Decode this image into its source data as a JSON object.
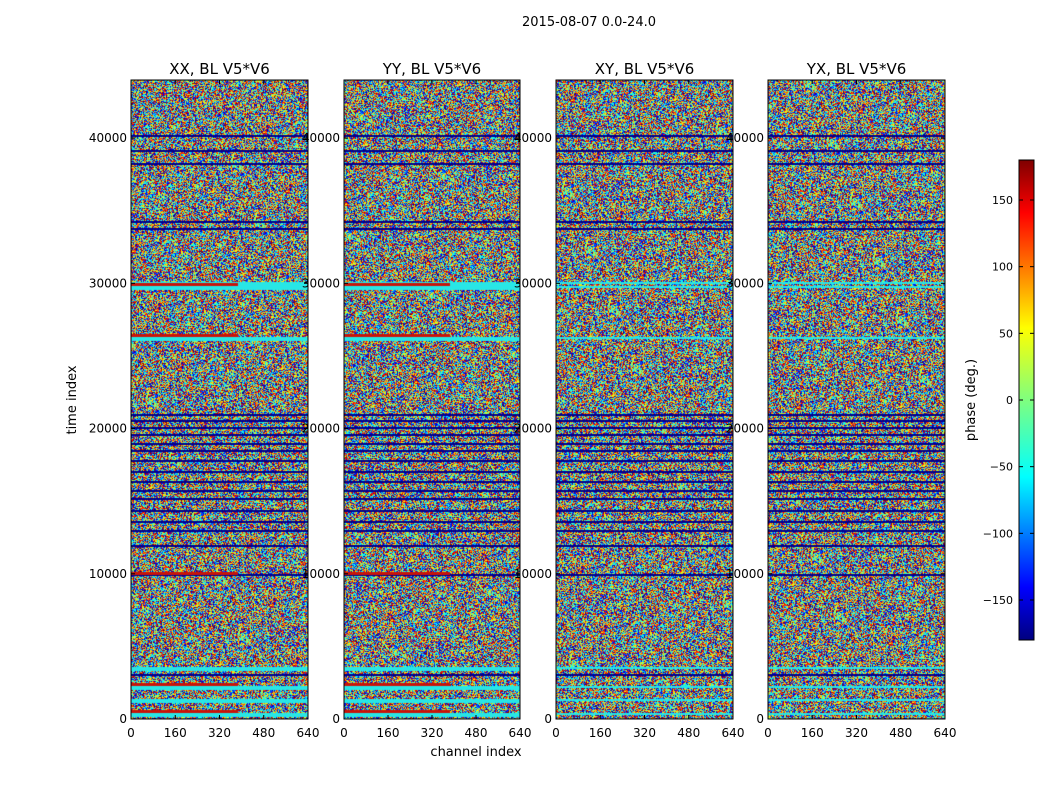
{
  "chart_data": {
    "type": "heatmap",
    "suptitle": "2015-08-07 0.0-24.0",
    "xlabel": "channel index",
    "ylabel": "time index",
    "xlim": [
      0,
      640
    ],
    "ylim": [
      0,
      44000
    ],
    "xticks": [
      0,
      160,
      320,
      480,
      640
    ],
    "yticks": [
      0,
      10000,
      20000,
      30000,
      40000
    ],
    "panels": [
      {
        "title": "XX, BL V5*V6"
      },
      {
        "title": "YY, BL V5*V6"
      },
      {
        "title": "XY, BL V5*V6"
      },
      {
        "title": "YX, BL V5*V6"
      }
    ],
    "colorbar": {
      "label": "phase (deg.)",
      "range": [
        -180,
        180
      ],
      "ticks": [
        -150,
        -100,
        -50,
        0,
        50,
        100,
        150
      ],
      "tick_labels": [
        "−150",
        "−100",
        "−50",
        "0",
        "50",
        "100",
        "150"
      ],
      "colormap": "jet"
    },
    "bands": {
      "dark_rows": [
        3100,
        10000,
        12000,
        13000,
        13600,
        14400,
        15200,
        15800,
        16400,
        17100,
        17800,
        18500,
        19000,
        19600,
        20100,
        20600,
        21000,
        33800,
        34300,
        38300,
        39200,
        40200
      ],
      "cyan_rows": [
        400,
        1400,
        2300,
        3600,
        26300,
        29800,
        30100
      ],
      "red_rows": [
        600,
        2500,
        10100,
        26500,
        30000
      ]
    },
    "colors": {
      "background": "#ffffff",
      "frame": "#000000",
      "text": "#000000",
      "jet": [
        "#00007f",
        "#0000ff",
        "#007fff",
        "#00ffff",
        "#7fff7f",
        "#ffff00",
        "#ff7f00",
        "#ff0000",
        "#7f0000"
      ]
    }
  }
}
